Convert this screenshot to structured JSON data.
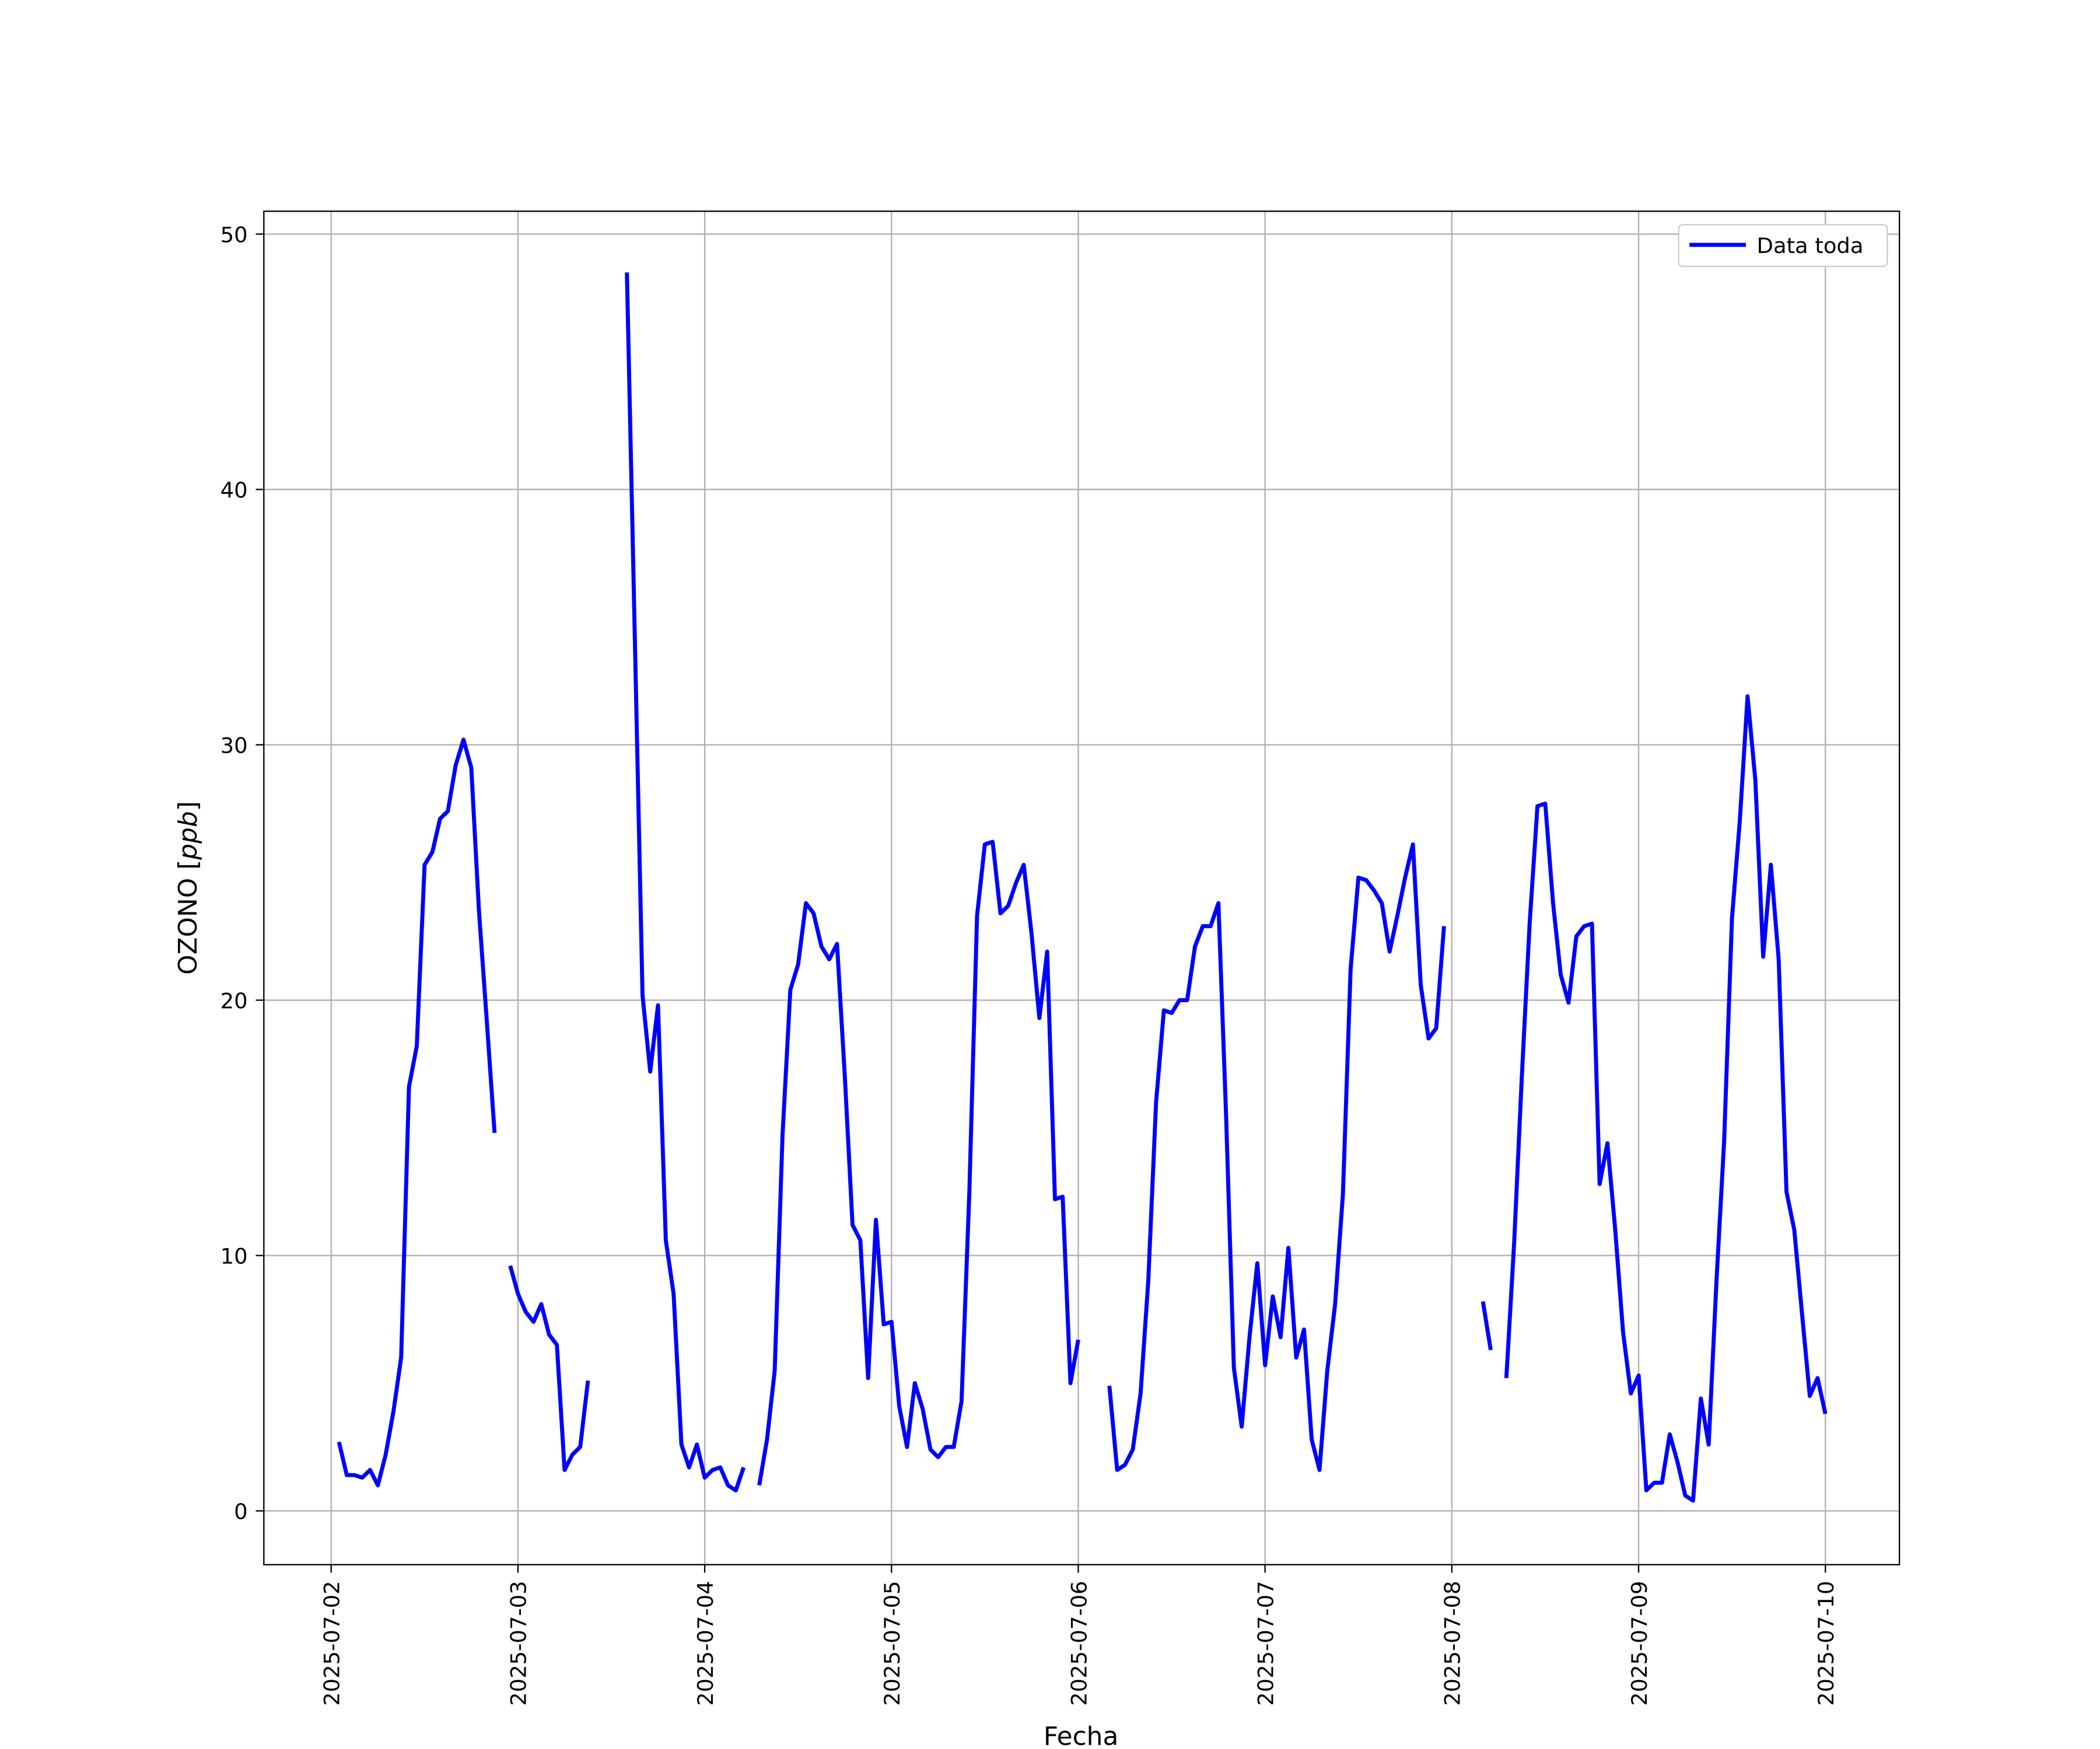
{
  "chart_data": {
    "type": "line",
    "title": "",
    "xlabel": "Fecha",
    "ylabel": "OZONO [ppb]",
    "ylabel_italic_part": "ppb",
    "x_start": "2025-07-02 01:00",
    "x_step": "1h",
    "xlim": [
      "2025-07-01 15:21",
      "2025-07-10 09:30"
    ],
    "ylim": [
      -2.1,
      50.9
    ],
    "x_ticks": [
      "2025-07-02",
      "2025-07-03",
      "2025-07-04",
      "2025-07-05",
      "2025-07-06",
      "2025-07-07",
      "2025-07-08",
      "2025-07-09",
      "2025-07-10"
    ],
    "y_ticks": [
      0,
      10,
      20,
      30,
      40,
      50
    ],
    "grid": true,
    "legend_position": "top-right",
    "series": [
      {
        "name": "Data toda",
        "color": "#0000ff",
        "values": [
          2.7,
          1.4,
          1.4,
          1.3,
          1.6,
          1.0,
          2.2,
          3.9,
          6.0,
          16.6,
          18.2,
          25.3,
          25.8,
          27.1,
          27.4,
          29.2,
          30.2,
          29.1,
          23.5,
          19.2,
          14.8,
          null,
          9.6,
          8.5,
          7.8,
          7.4,
          8.1,
          6.9,
          6.5,
          1.6,
          2.2,
          2.5,
          5.1,
          null,
          null,
          null,
          null,
          48.5,
          34.4,
          20.2,
          17.2,
          19.8,
          10.6,
          8.5,
          2.6,
          1.7,
          2.6,
          1.3,
          1.6,
          1.7,
          1.0,
          0.8,
          1.7,
          null,
          1.0,
          2.8,
          5.5,
          14.7,
          20.4,
          21.4,
          23.8,
          23.4,
          22.1,
          21.6,
          22.2,
          17.0,
          11.2,
          10.6,
          5.2,
          11.4,
          7.3,
          7.4,
          4.1,
          2.5,
          5.0,
          4.0,
          2.4,
          2.1,
          2.5,
          2.5,
          4.3,
          12.5,
          23.3,
          26.1,
          26.2,
          23.4,
          23.7,
          24.6,
          25.3,
          22.6,
          19.3,
          21.9,
          12.2,
          12.3,
          5.0,
          6.7,
          null,
          null,
          null,
          4.9,
          1.6,
          1.8,
          2.4,
          4.6,
          9.0,
          16.0,
          19.6,
          19.5,
          20.0,
          20.0,
          22.1,
          22.9,
          22.9,
          23.8,
          15.5,
          5.6,
          3.3,
          6.8,
          9.7,
          5.7,
          8.4,
          6.8,
          10.3,
          6.0,
          7.1,
          2.8,
          1.6,
          5.5,
          8.1,
          12.4,
          21.2,
          24.8,
          24.7,
          24.3,
          23.8,
          21.9,
          23.3,
          24.8,
          26.1,
          20.6,
          18.5,
          18.9,
          22.9,
          null,
          null,
          null,
          null,
          8.2,
          6.3,
          null,
          5.2,
          10.5,
          17.0,
          23.0,
          27.6,
          27.7,
          23.8,
          21.0,
          19.9,
          22.5,
          22.9,
          23.0,
          12.8,
          14.4,
          11.0,
          7.0,
          4.6,
          5.3,
          0.8,
          1.1,
          1.1,
          3.0,
          1.9,
          0.6,
          0.4,
          4.4,
          2.6,
          9.0,
          14.5,
          23.2,
          27.0,
          31.9,
          28.6,
          21.7,
          25.3,
          21.6,
          12.5,
          11.0,
          7.7,
          4.5,
          5.2,
          3.8
        ]
      }
    ]
  }
}
